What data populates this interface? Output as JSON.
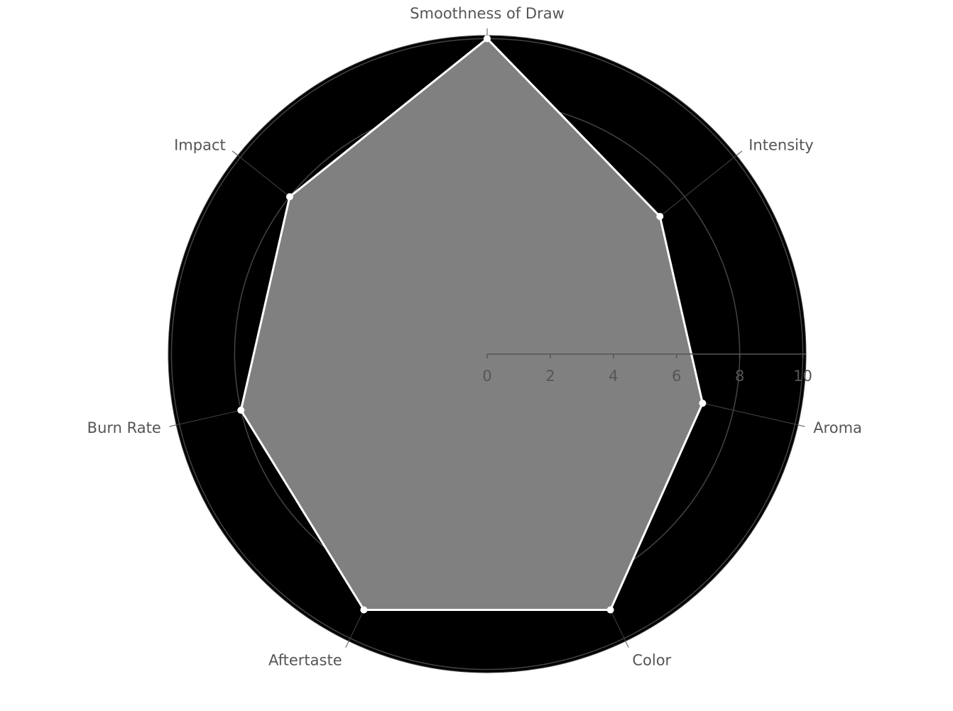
{
  "chart_data": {
    "type": "radar",
    "categories": [
      "Smoothness of Draw",
      "Intensity",
      "Aroma",
      "Color",
      "Aftertaste",
      "Burn Rate",
      "Impact"
    ],
    "values": [
      10,
      7,
      7,
      9,
      9,
      8,
      8
    ],
    "color": "#ffffff",
    "fill_color": "#808080",
    "background_color": "#000000",
    "ylim": [
      0,
      10.1
    ],
    "yticks": [
      0,
      2,
      4,
      6,
      8,
      10
    ],
    "grid": true,
    "direction": "clockwise"
  }
}
